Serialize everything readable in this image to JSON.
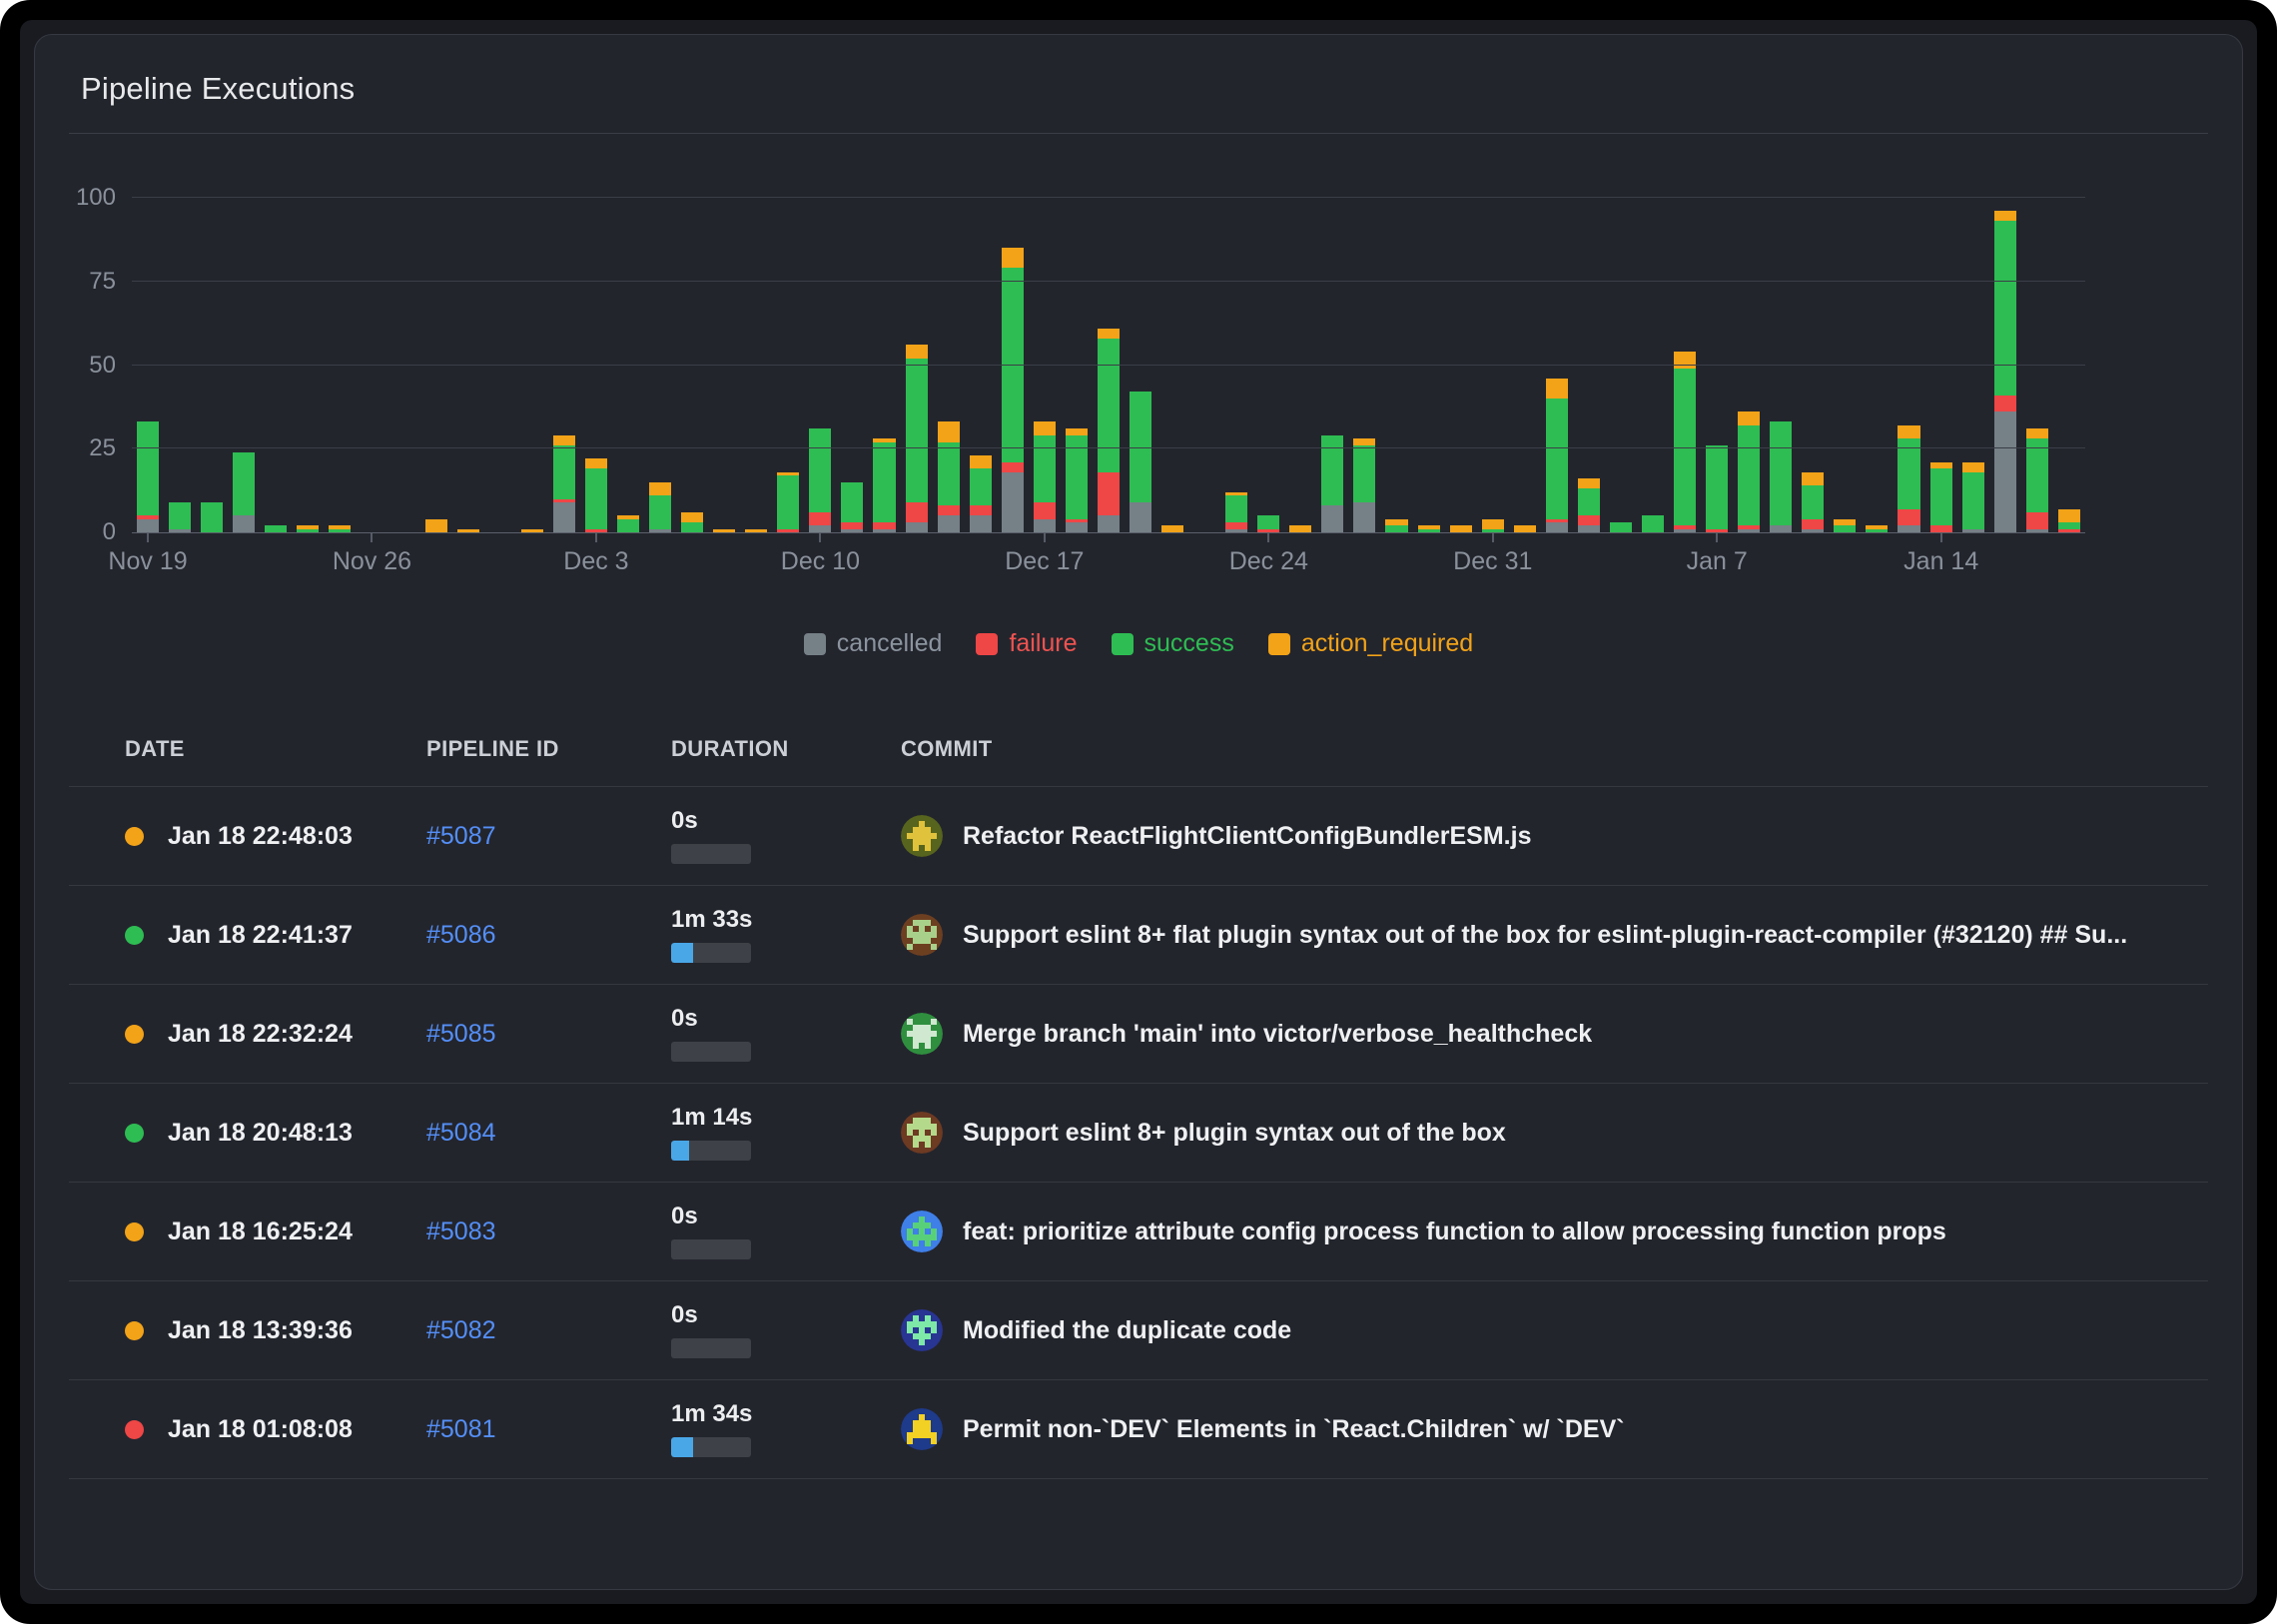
{
  "card": {
    "title": "Pipeline Executions"
  },
  "chart_data": {
    "type": "bar",
    "stacked": true,
    "title": "Pipeline Executions",
    "xlabel": "",
    "ylabel": "",
    "ylim": [
      0,
      100
    ],
    "y_ticks": [
      0,
      25,
      50,
      75,
      100
    ],
    "grid": true,
    "grid_color": "#3a3e46",
    "axis_color": "#5a606a",
    "tick_label_color": "#8a919b",
    "legend_position": "bottom-center",
    "series_order": [
      "cancelled",
      "failure",
      "success",
      "action_required"
    ],
    "colors": {
      "cancelled": "#768087",
      "failure": "#ef4646",
      "success": "#2ebd53",
      "action_required": "#f2a318"
    },
    "x_ticks": [
      {
        "i": 0,
        "label": "Nov 19"
      },
      {
        "i": 7,
        "label": "Nov 26"
      },
      {
        "i": 14,
        "label": "Dec 3"
      },
      {
        "i": 21,
        "label": "Dec 10"
      },
      {
        "i": 28,
        "label": "Dec 17"
      },
      {
        "i": 35,
        "label": "Dec 24"
      },
      {
        "i": 42,
        "label": "Dec 31"
      },
      {
        "i": 49,
        "label": "Jan 7"
      },
      {
        "i": 56,
        "label": "Jan 14"
      }
    ],
    "bars_format": "[cancelled, failure, success, action_required] per day",
    "bars": [
      [
        4,
        1,
        28,
        0
      ],
      [
        1,
        0,
        8,
        0
      ],
      [
        0,
        0,
        9,
        0
      ],
      [
        5,
        0,
        19,
        0
      ],
      [
        0,
        0,
        2,
        0
      ],
      [
        0,
        0,
        1,
        1
      ],
      [
        0,
        0,
        1,
        1
      ],
      [
        0,
        0,
        0,
        0
      ],
      [
        0,
        0,
        0,
        0
      ],
      [
        0,
        0,
        0,
        4
      ],
      [
        0,
        0,
        0,
        1
      ],
      [
        0,
        0,
        0,
        0
      ],
      [
        0,
        0,
        0,
        1
      ],
      [
        9,
        1,
        16,
        3
      ],
      [
        0,
        1,
        18,
        3
      ],
      [
        0,
        0,
        4,
        1
      ],
      [
        1,
        0,
        10,
        4
      ],
      [
        0,
        0,
        3,
        3
      ],
      [
        0,
        0,
        0,
        1
      ],
      [
        0,
        0,
        0,
        1
      ],
      [
        0,
        1,
        16,
        1
      ],
      [
        2,
        4,
        25,
        0
      ],
      [
        1,
        2,
        12,
        0
      ],
      [
        1,
        2,
        24,
        1
      ],
      [
        3,
        6,
        43,
        4
      ],
      [
        5,
        3,
        19,
        6
      ],
      [
        5,
        3,
        11,
        4
      ],
      [
        18,
        3,
        58,
        6
      ],
      [
        4,
        5,
        20,
        4
      ],
      [
        3,
        1,
        25,
        2
      ],
      [
        5,
        13,
        40,
        3
      ],
      [
        9,
        0,
        33,
        0
      ],
      [
        0,
        0,
        0,
        2
      ],
      [
        0,
        0,
        0,
        0
      ],
      [
        1,
        2,
        8,
        1
      ],
      [
        0,
        1,
        4,
        0
      ],
      [
        0,
        0,
        0,
        2
      ],
      [
        8,
        0,
        21,
        0
      ],
      [
        9,
        0,
        17,
        2
      ],
      [
        0,
        0,
        2,
        2
      ],
      [
        0,
        0,
        1,
        1
      ],
      [
        0,
        0,
        0,
        2
      ],
      [
        0,
        0,
        1,
        3
      ],
      [
        0,
        0,
        0,
        2
      ],
      [
        3,
        1,
        36,
        6
      ],
      [
        2,
        3,
        8,
        3
      ],
      [
        0,
        0,
        3,
        0
      ],
      [
        0,
        0,
        5,
        0
      ],
      [
        1,
        1,
        47,
        5
      ],
      [
        0,
        1,
        25,
        0
      ],
      [
        1,
        1,
        30,
        4
      ],
      [
        2,
        0,
        31,
        0
      ],
      [
        1,
        3,
        10,
        4
      ],
      [
        0,
        0,
        2,
        2
      ],
      [
        0,
        0,
        1,
        1
      ],
      [
        2,
        5,
        21,
        4
      ],
      [
        0,
        2,
        17,
        2
      ],
      [
        1,
        0,
        17,
        3
      ],
      [
        36,
        5,
        52,
        3
      ],
      [
        1,
        5,
        22,
        3
      ],
      [
        0,
        1,
        2,
        4
      ]
    ]
  },
  "legend": {
    "items": [
      {
        "label": "cancelled",
        "color": "#768087",
        "text_color": "#8b949e"
      },
      {
        "label": "failure",
        "color": "#ef4646",
        "text_color": "#ef5350"
      },
      {
        "label": "success",
        "color": "#2ebd53",
        "text_color": "#2ebd53"
      },
      {
        "label": "action_required",
        "color": "#f2a318",
        "text_color": "#f2a318"
      }
    ]
  },
  "table": {
    "columns": [
      "DATE",
      "PIPELINE ID",
      "DURATION",
      "COMMIT"
    ],
    "status_colors": {
      "success": "#2ebd53",
      "failure": "#ef4646",
      "action_required": "#f2a318"
    },
    "duration_fill_color": "#49a7e8",
    "rows": [
      {
        "status": "action_required",
        "date": "Jan 18 22:48:03",
        "pipeline_id": "#5087",
        "duration": "0s",
        "duration_fill_pct": 0,
        "commit": "Refactor ReactFlightClientConfigBundlerESM.js",
        "avatar": {
          "bg": "#57641d",
          "fg": "#e0c23c",
          "pattern": [
            "00100",
            "01110",
            "11111",
            "01110",
            "01010"
          ]
        }
      },
      {
        "status": "success",
        "date": "Jan 18 22:41:37",
        "pipeline_id": "#5086",
        "duration": "1m 33s",
        "duration_fill_pct": 27,
        "commit": "Support eslint 8+ flat plugin syntax out of the box for eslint-plugin-react-compiler (#32120) ## Su...",
        "avatar": {
          "bg": "#6d3f21",
          "fg": "#a9d08a",
          "pattern": [
            "01110",
            "10101",
            "11111",
            "01110",
            "10001"
          ]
        }
      },
      {
        "status": "action_required",
        "date": "Jan 18 22:32:24",
        "pipeline_id": "#5085",
        "duration": "0s",
        "duration_fill_pct": 0,
        "commit": "Merge branch 'main' into victor/verbose_healthcheck",
        "avatar": {
          "bg": "#2f8f3f",
          "fg": "#cfe8cf",
          "pattern": [
            "10001",
            "01110",
            "11111",
            "01110",
            "01010"
          ]
        }
      },
      {
        "status": "success",
        "date": "Jan 18 20:48:13",
        "pipeline_id": "#5084",
        "duration": "1m 14s",
        "duration_fill_pct": 22,
        "commit": "Support eslint 8+ plugin syntax out of the box",
        "avatar": {
          "bg": "#6d3a22",
          "fg": "#b5d98b",
          "pattern": [
            "01110",
            "11111",
            "10101",
            "01110",
            "01010"
          ]
        }
      },
      {
        "status": "action_required",
        "date": "Jan 18 16:25:24",
        "pipeline_id": "#5083",
        "duration": "0s",
        "duration_fill_pct": 0,
        "commit": "feat: prioritize attribute config process function to allow processing function props",
        "avatar": {
          "bg": "#3f7fe8",
          "fg": "#58d07a",
          "pattern": [
            "00100",
            "01110",
            "10101",
            "11111",
            "01010"
          ]
        }
      },
      {
        "status": "action_required",
        "date": "Jan 18 13:39:36",
        "pipeline_id": "#5082",
        "duration": "0s",
        "duration_fill_pct": 0,
        "commit": "Modified the duplicate code",
        "avatar": {
          "bg": "#283593",
          "fg": "#7de8a8",
          "pattern": [
            "01010",
            "11111",
            "10101",
            "01110",
            "00100"
          ]
        }
      },
      {
        "status": "failure",
        "date": "Jan 18 01:08:08",
        "pipeline_id": "#5081",
        "duration": "1m 34s",
        "duration_fill_pct": 28,
        "commit": "Permit non-`DEV` Elements in `React.Children` w/ `DEV`",
        "avatar": {
          "bg": "#1e3a8a",
          "fg": "#f2d024",
          "pattern": [
            "00100",
            "01110",
            "01110",
            "11111",
            "10001"
          ]
        }
      }
    ]
  }
}
